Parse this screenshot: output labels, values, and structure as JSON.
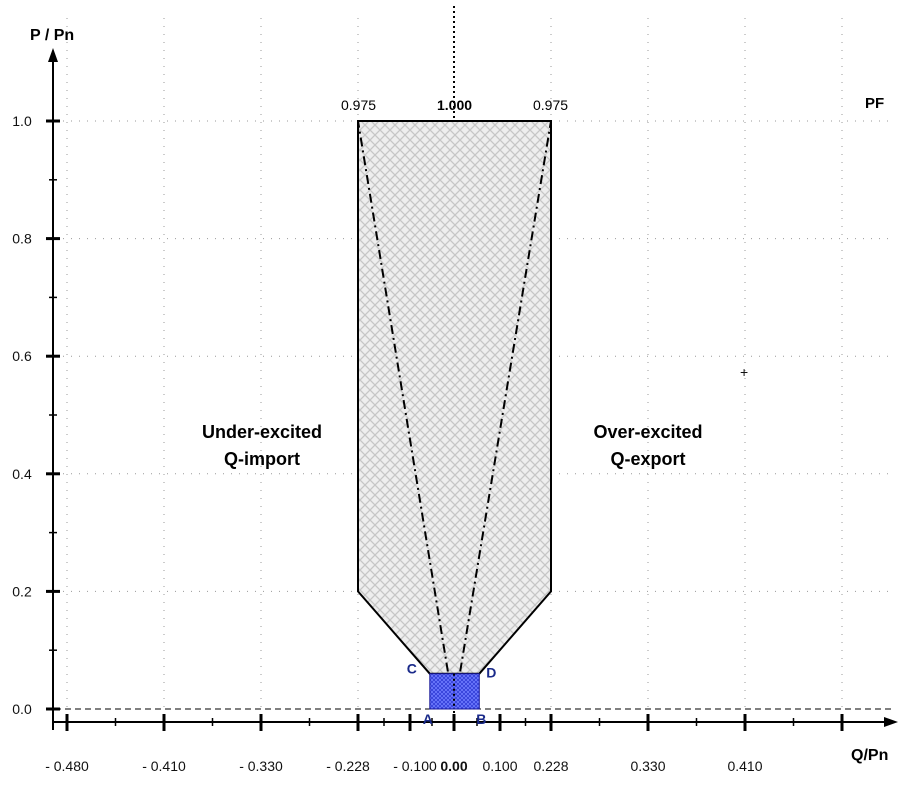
{
  "chart_data": {
    "type": "area",
    "ylabel": "P / Pn",
    "xlabel": "Q/Pn",
    "pf_label": "PF",
    "pf_values": [
      "0.975",
      "1.000",
      "0.975"
    ],
    "regions": {
      "left": [
        "Under-excited",
        "Q-import"
      ],
      "right": [
        "Over-excited",
        "Q-export"
      ]
    },
    "x_ticks": [
      {
        "value": -0.48,
        "label": "- 0.480"
      },
      {
        "value": -0.41,
        "label": "- 0.410"
      },
      {
        "value": -0.33,
        "label": "- 0.330"
      },
      {
        "value": -0.228,
        "label": "- 0.228"
      },
      {
        "value": -0.1,
        "label": "- 0.100"
      },
      {
        "value": 0.0,
        "label": "0.00"
      },
      {
        "value": 0.1,
        "label": "0.100"
      },
      {
        "value": 0.228,
        "label": "0.228"
      },
      {
        "value": 0.33,
        "label": "0.330"
      },
      {
        "value": 0.41,
        "label": "0.410"
      }
    ],
    "y_ticks": [
      {
        "value": 0.0,
        "label": "0.0"
      },
      {
        "value": 0.2,
        "label": "0.2"
      },
      {
        "value": 0.4,
        "label": "0.4"
      },
      {
        "value": 0.6,
        "label": "0.6"
      },
      {
        "value": 0.8,
        "label": "0.8"
      },
      {
        "value": 1.0,
        "label": "1.0"
      }
    ],
    "operating_area": [
      {
        "q": -0.228,
        "p": 1.0
      },
      {
        "q": 0.228,
        "p": 1.0
      },
      {
        "q": 0.228,
        "p": 0.2
      },
      {
        "q": 0.055,
        "p": 0.06
      },
      {
        "q": -0.055,
        "p": 0.06
      },
      {
        "q": -0.228,
        "p": 0.2
      }
    ],
    "small_area": {
      "q_min": -0.055,
      "q_max": 0.055,
      "p_min": 0.0,
      "p_max": 0.06
    },
    "corner_points": [
      {
        "label": "A",
        "q": -0.055,
        "p": 0.0
      },
      {
        "label": "B",
        "q": 0.055,
        "p": 0.0
      },
      {
        "label": "C",
        "q": -0.055,
        "p": 0.06
      },
      {
        "label": "D",
        "q": 0.055,
        "p": 0.06
      }
    ],
    "pf_lines": [
      {
        "from": {
          "q": 0.0,
          "p": 0.0
        },
        "to": {
          "q": -0.228,
          "p": 1.0
        }
      },
      {
        "from": {
          "q": 0.0,
          "p": 0.0
        },
        "to": {
          "q": 0.228,
          "p": 1.0
        }
      }
    ],
    "grid": true,
    "colors": {
      "area_fill": "#dddddd",
      "small_area": "#2f3bd6",
      "point_labels": "#1a2a8a"
    }
  }
}
